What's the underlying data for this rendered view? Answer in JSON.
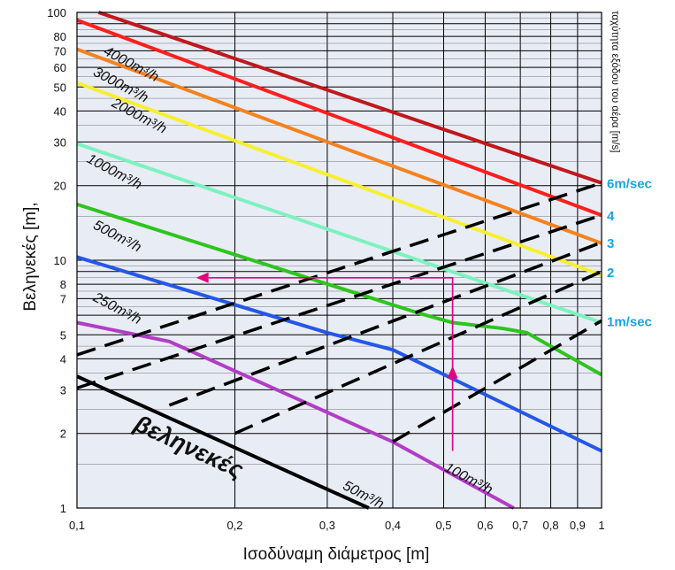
{
  "chart_data": {
    "type": "line",
    "xscale": "log",
    "yscale": "log",
    "xlim": [
      0.1,
      1
    ],
    "ylim": [
      1,
      100
    ],
    "xlabel": "Ισοδύναμη διάμετρος [m]",
    "ylabel": "Βεληνεκές [m],",
    "right_label": "ταχύτητα εξόδου του αέρα [m/s]",
    "curves_title": "βεληνεκές",
    "x_ticks": [
      {
        "value": 0.1,
        "label": "0,1"
      },
      {
        "value": 0.2,
        "label": "0,2"
      },
      {
        "value": 0.3,
        "label": "0,3"
      },
      {
        "value": 0.4,
        "label": "0,4"
      },
      {
        "value": 0.5,
        "label": "0,5"
      },
      {
        "value": 0.6,
        "label": "0,6"
      },
      {
        "value": 0.7,
        "label": "0,7"
      },
      {
        "value": 0.8,
        "label": "0,8"
      },
      {
        "value": 0.9,
        "label": "0,9"
      },
      {
        "value": 1.0,
        "label": "1"
      }
    ],
    "y_ticks": [
      {
        "value": 1,
        "label": "1"
      },
      {
        "value": 2,
        "label": "2"
      },
      {
        "value": 3,
        "label": "3"
      },
      {
        "value": 4,
        "label": "4"
      },
      {
        "value": 5,
        "label": "5"
      },
      {
        "value": 7,
        "label": "7"
      },
      {
        "value": 8,
        "label": "8"
      },
      {
        "value": 10,
        "label": "10"
      },
      {
        "value": 20,
        "label": "20"
      },
      {
        "value": 30,
        "label": "30"
      },
      {
        "value": 40,
        "label": "40"
      },
      {
        "value": 50,
        "label": "50"
      },
      {
        "value": 60,
        "label": "60"
      },
      {
        "value": 70,
        "label": "70"
      },
      {
        "value": 80,
        "label": "80"
      },
      {
        "value": 100,
        "label": "100"
      }
    ],
    "series": [
      {
        "name": "4000m³/h",
        "color": "#c0181d",
        "points": [
          [
            0.11,
            100
          ],
          [
            1.0,
            20.5
          ]
        ],
        "label_at": [
          0.112,
          68
        ],
        "label_rot": 28
      },
      {
        "name": "3000m³/h",
        "color": "#ff1e1e",
        "points": [
          [
            0.1,
            93
          ],
          [
            1.0,
            15.2
          ]
        ],
        "label_at": [
          0.107,
          56
        ],
        "label_rot": 28
      },
      {
        "name": "2000m³/h",
        "color": "#f5821f",
        "points": [
          [
            0.1,
            71
          ],
          [
            1.0,
            11.7
          ]
        ],
        "label_at": [
          0.116,
          42
        ],
        "label_rot": 28
      },
      {
        "name": "1000m³/h",
        "color": "#f7ef2f",
        "points": [
          [
            0.1,
            52
          ],
          [
            1.0,
            8.7
          ]
        ],
        "label_at": [
          0.104,
          25
        ],
        "label_rot": 28
      },
      {
        "name": "500m³/h",
        "color": "#7df2c0",
        "points": [
          [
            0.1,
            29.5
          ],
          [
            1.0,
            5.6
          ]
        ],
        "label_at": [
          0.107,
          13.5
        ],
        "label_rot": 28
      },
      {
        "name": "250m³/h",
        "color": "#2ec41f",
        "points": [
          [
            0.1,
            16.8
          ],
          [
            0.45,
            6.1
          ],
          [
            0.52,
            5.6
          ],
          [
            0.65,
            5.3
          ],
          [
            0.72,
            5.1
          ],
          [
            1.0,
            3.45
          ]
        ],
        "label_at": [
          0.107,
          6.9
        ],
        "label_rot": 28
      },
      {
        "name": "100m³/h",
        "color": "#2457e8",
        "points": [
          [
            0.1,
            10.3
          ],
          [
            0.3,
            5.1
          ],
          [
            0.4,
            4.35
          ],
          [
            1.0,
            1.7
          ]
        ],
        "label_at": [
          0.5,
          1.42
        ],
        "label_rot": 28
      },
      {
        "name": "50m³/h",
        "color": "#b13dc6",
        "points": [
          [
            0.1,
            5.6
          ],
          [
            0.15,
            4.7
          ],
          [
            0.4,
            1.85
          ],
          [
            0.68,
            1.0
          ]
        ],
        "label_at": [
          0.32,
          1.2
        ],
        "label_rot": 28
      },
      {
        "name": "",
        "color": "#000000",
        "points": [
          [
            0.1,
            3.4
          ],
          [
            0.36,
            1.0
          ]
        ]
      }
    ],
    "velocity_lines": [
      {
        "label": "6m/sec",
        "points": [
          [
            0.1,
            4.15
          ],
          [
            1.0,
            20.5
          ]
        ]
      },
      {
        "label": "4",
        "points": [
          [
            0.1,
            3.05
          ],
          [
            1.0,
            15.2
          ]
        ]
      },
      {
        "label": "3",
        "points": [
          [
            0.15,
            2.6
          ],
          [
            1.0,
            11.8
          ]
        ]
      },
      {
        "label": "2",
        "points": [
          [
            0.2,
            2.0
          ],
          [
            1.0,
            9.0
          ]
        ]
      },
      {
        "label": "1m/sec",
        "points": [
          [
            0.4,
            1.85
          ],
          [
            1.0,
            5.7
          ]
        ]
      }
    ],
    "example_path": {
      "color": "#e6007e",
      "points": [
        [
          0.52,
          1.7
        ],
        [
          0.52,
          8.5
        ],
        [
          0.17,
          8.5
        ]
      ]
    },
    "grid": true,
    "velocity_label_color": "#1aa3e0"
  }
}
